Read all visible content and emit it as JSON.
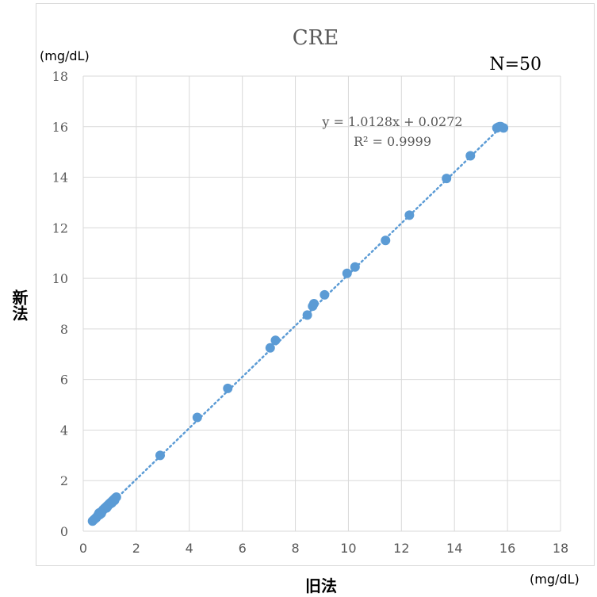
{
  "chart_data": {
    "type": "scatter",
    "title": "CRE",
    "annotation_n": "N=50",
    "equation": "y = 1.0128x + 0.0272",
    "r_squared": "R² = 0.9999",
    "ylabel_unit": "(mg/dL)",
    "xlabel_unit": "(mg/dL)",
    "xlabel": "旧法",
    "ylabel": "新法",
    "xlim": [
      0,
      18
    ],
    "ylim": [
      0,
      18
    ],
    "x_ticks": [
      "0",
      "2",
      "4",
      "6",
      "8",
      "10",
      "12",
      "14",
      "16",
      "18"
    ],
    "y_ticks": [
      "0",
      "2",
      "4",
      "6",
      "8",
      "10",
      "12",
      "14",
      "16",
      "18"
    ],
    "grid": true,
    "trendline": {
      "slope": 1.0128,
      "intercept": 0.0272,
      "style": "dotted"
    },
    "colors": {
      "point": "#5b9bd5",
      "trendline": "#5b9bd5",
      "grid": "#d9d9d9",
      "axis_text": "#595959"
    },
    "series": [
      {
        "points": [
          [
            0.35,
            0.4
          ],
          [
            0.4,
            0.45
          ],
          [
            0.45,
            0.5
          ],
          [
            0.5,
            0.55
          ],
          [
            0.55,
            0.62
          ],
          [
            0.58,
            0.68
          ],
          [
            0.6,
            0.72
          ],
          [
            0.65,
            0.75
          ],
          [
            0.7,
            0.78
          ],
          [
            0.75,
            0.85
          ],
          [
            0.8,
            0.9
          ],
          [
            0.85,
            0.95
          ],
          [
            0.9,
            1.0
          ],
          [
            0.95,
            1.05
          ],
          [
            1.0,
            1.1
          ],
          [
            1.05,
            1.15
          ],
          [
            1.1,
            1.2
          ],
          [
            1.15,
            1.25
          ],
          [
            1.2,
            1.3
          ],
          [
            1.25,
            1.35
          ],
          [
            0.62,
            0.65
          ],
          [
            0.72,
            0.8
          ],
          [
            0.88,
            0.92
          ],
          [
            1.02,
            1.08
          ],
          [
            1.18,
            1.22
          ],
          [
            0.48,
            0.52
          ],
          [
            0.68,
            0.7
          ],
          [
            0.92,
            0.98
          ],
          [
            1.08,
            1.12
          ],
          [
            1.22,
            1.32
          ],
          [
            2.9,
            3.0
          ],
          [
            4.3,
            4.5
          ],
          [
            5.45,
            5.65
          ],
          [
            7.05,
            7.25
          ],
          [
            7.25,
            7.55
          ],
          [
            8.45,
            8.55
          ],
          [
            8.65,
            8.9
          ],
          [
            8.7,
            9.0
          ],
          [
            9.1,
            9.35
          ],
          [
            9.95,
            10.2
          ],
          [
            10.25,
            10.45
          ],
          [
            11.4,
            11.5
          ],
          [
            12.3,
            12.5
          ],
          [
            13.7,
            13.95
          ],
          [
            14.6,
            14.85
          ],
          [
            15.6,
            15.95
          ],
          [
            15.7,
            16.0
          ],
          [
            15.75,
            16.0
          ],
          [
            15.85,
            15.95
          ],
          [
            15.65,
            15.98
          ]
        ]
      }
    ]
  }
}
